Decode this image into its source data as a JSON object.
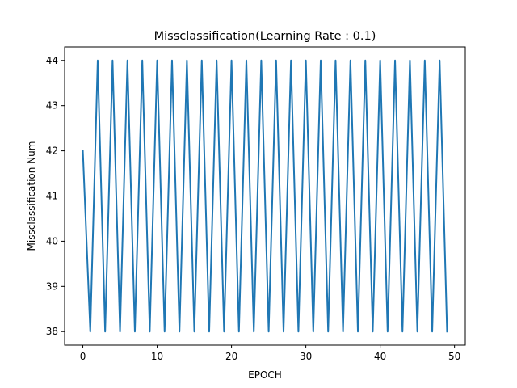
{
  "chart_data": {
    "type": "line",
    "title": "Missclassification(Learning Rate : 0.1)",
    "xlabel": "EPOCH",
    "ylabel": "Missclassification Num",
    "xlim": [
      -2.45,
      51.45
    ],
    "ylim": [
      37.7,
      44.3
    ],
    "xticks": [
      0,
      10,
      20,
      30,
      40,
      50
    ],
    "yticks": [
      38,
      39,
      40,
      41,
      42,
      43,
      44
    ],
    "grid": false,
    "series": [
      {
        "color": "#1f77b4",
        "x": [
          0,
          1,
          2,
          3,
          4,
          5,
          6,
          7,
          8,
          9,
          10,
          11,
          12,
          13,
          14,
          15,
          16,
          17,
          18,
          19,
          20,
          21,
          22,
          23,
          24,
          25,
          26,
          27,
          28,
          29,
          30,
          31,
          32,
          33,
          34,
          35,
          36,
          37,
          38,
          39,
          40,
          41,
          42,
          43,
          44,
          45,
          46,
          47,
          48,
          49
        ],
        "y": [
          42,
          38,
          44,
          38,
          44,
          38,
          44,
          38,
          44,
          38,
          44,
          38,
          44,
          38,
          44,
          38,
          44,
          38,
          44,
          38,
          44,
          38,
          44,
          38,
          44,
          38,
          44,
          38,
          44,
          38,
          44,
          38,
          44,
          38,
          44,
          38,
          44,
          38,
          44,
          38,
          44,
          38,
          44,
          38,
          44,
          38,
          44,
          38,
          44,
          38
        ]
      }
    ]
  }
}
